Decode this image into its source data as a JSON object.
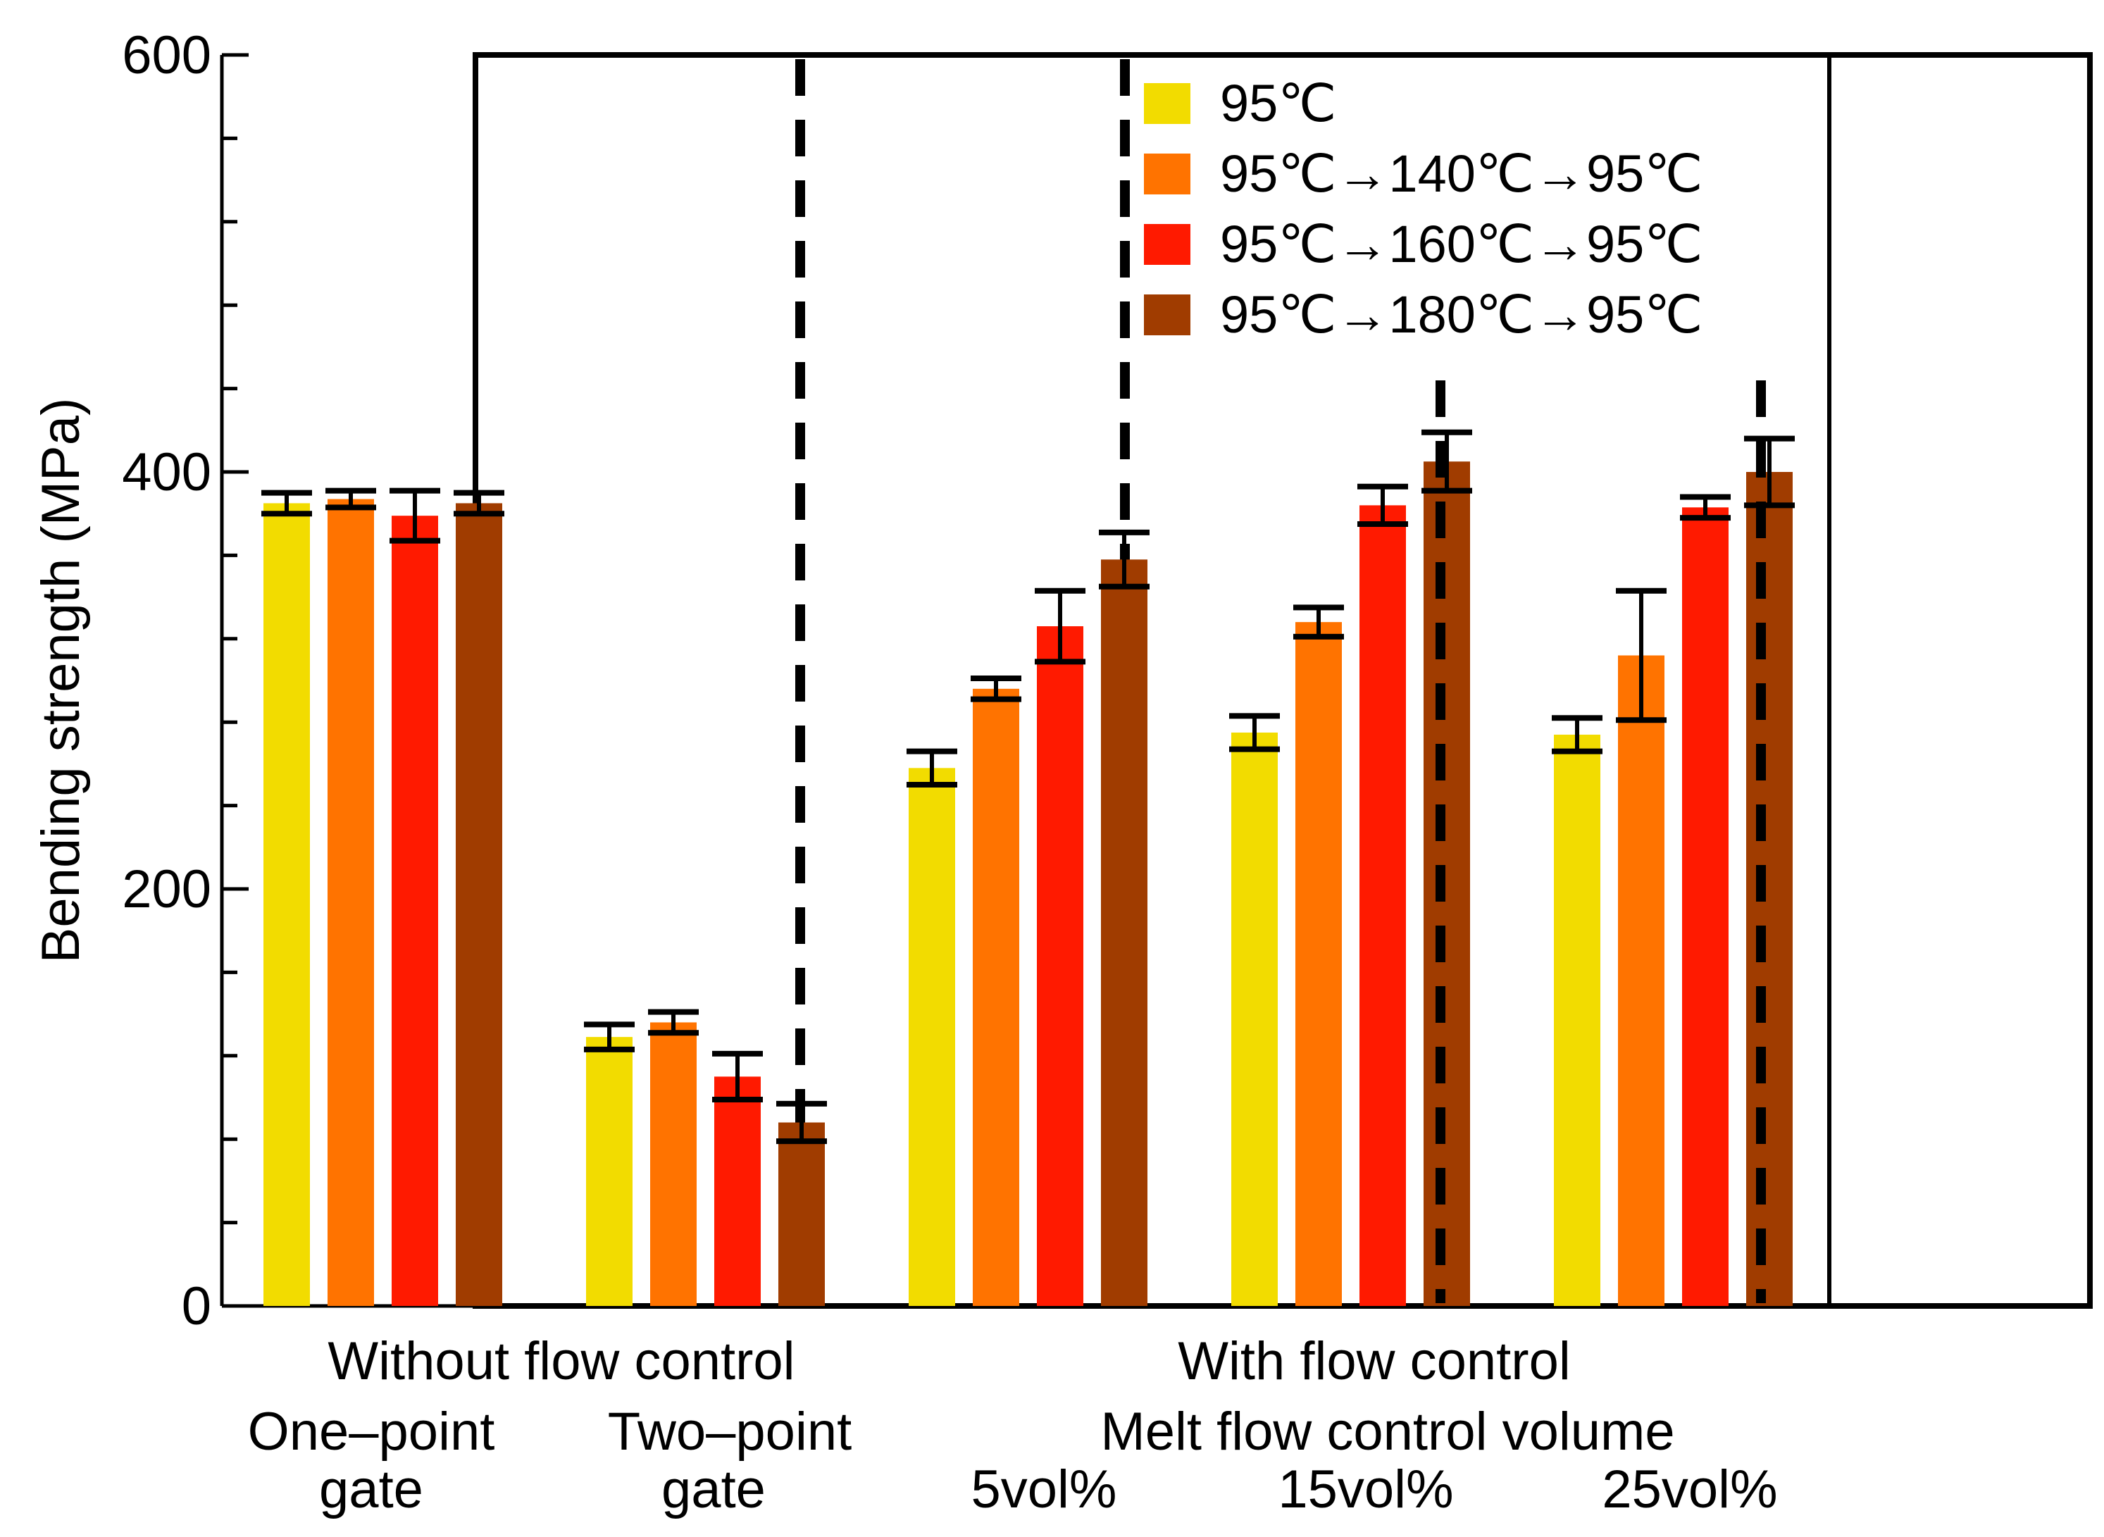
{
  "chart_data": {
    "type": "bar",
    "title": "",
    "ylabel": "Bending strength (MPa)",
    "xlabel": "",
    "ylim": [
      0,
      600
    ],
    "y_major_ticks": [
      0,
      200,
      400,
      600
    ],
    "y_minor_step": 40,
    "categories": [
      "One–point gate",
      "Two–point gate",
      "5vol%",
      "15vol%",
      "25vol%"
    ],
    "series": [
      {
        "name": "95℃",
        "color": "#F2DC00",
        "values": [
          385,
          129,
          258,
          275,
          274
        ],
        "errors": [
          5,
          6,
          8,
          8,
          8
        ]
      },
      {
        "name": "95℃→140℃→95℃",
        "color": "#FF7300",
        "values": [
          387,
          136,
          296,
          328,
          312
        ],
        "errors": [
          4,
          5,
          5,
          7,
          31
        ]
      },
      {
        "name": "95℃→160℃→95℃",
        "color": "#FF1A00",
        "values": [
          379,
          110,
          326,
          384,
          383
        ],
        "errors": [
          12,
          11,
          17,
          9,
          5
        ]
      },
      {
        "name": "95℃→180℃→95℃",
        "color": "#A03C00",
        "values": [
          385,
          88,
          358,
          405,
          400
        ],
        "errors": [
          5,
          9,
          13,
          14,
          16
        ]
      }
    ],
    "group_labels": {
      "without": "Without flow control",
      "with": "With flow control",
      "volume": "Melt flow control volume",
      "gate_one_line1": "One–point",
      "gate_one_line2": "gate",
      "gate_two_line1": "Two–point",
      "gate_two_line2": "gate",
      "vol5": "5vol%",
      "vol15": "15vol%",
      "vol25": "25vol%"
    },
    "legend_position": "top-right"
  }
}
